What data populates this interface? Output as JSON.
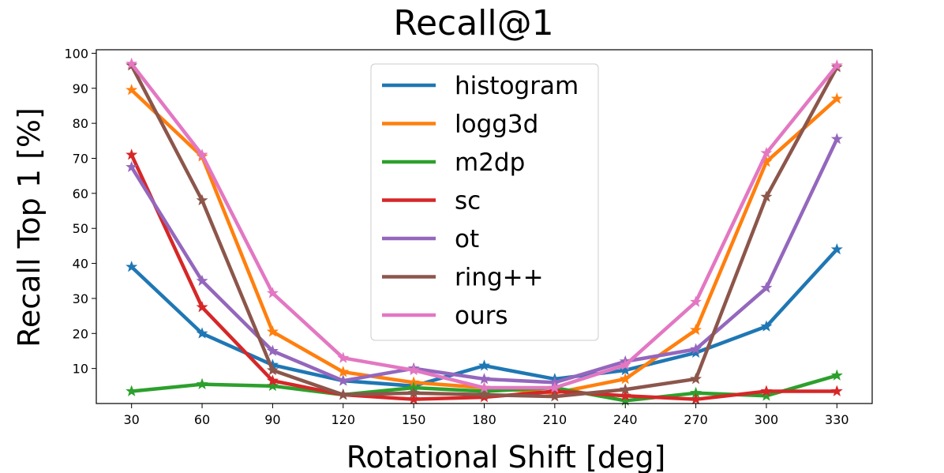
{
  "chart_data": {
    "type": "line",
    "title": "Recall@1",
    "xlabel": "Rotational Shift [deg]",
    "ylabel": "Recall Top 1 [%]",
    "x": [
      30,
      60,
      90,
      120,
      150,
      180,
      210,
      240,
      270,
      300,
      330
    ],
    "x_ticks": [
      "30",
      "60",
      "90",
      "120",
      "150",
      "180",
      "210",
      "240",
      "270",
      "300",
      "330"
    ],
    "y_ticks": [
      "10",
      "20",
      "30",
      "40",
      "50",
      "60",
      "70",
      "80",
      "90",
      "100"
    ],
    "xlim": [
      15,
      345
    ],
    "ylim": [
      0,
      101
    ],
    "grid": false,
    "legend_position": "upper-center",
    "marker": "star",
    "series": [
      {
        "name": "histogram",
        "color": "#1f77b4",
        "values": [
          39,
          20,
          11,
          6.5,
          5,
          10.8,
          7,
          9.5,
          14.5,
          22,
          44
        ]
      },
      {
        "name": "logg3d",
        "color": "#ff7f0e",
        "values": [
          89.5,
          70.5,
          20.5,
          9,
          6,
          4.5,
          3,
          7,
          21,
          69,
          87
        ]
      },
      {
        "name": "m2dp",
        "color": "#2ca02c",
        "values": [
          3.5,
          5.5,
          5,
          2.5,
          4.5,
          3.5,
          4.5,
          0.8,
          3,
          2.2,
          8
        ]
      },
      {
        "name": "sc",
        "color": "#d62728",
        "values": [
          71,
          27.5,
          6.5,
          2.5,
          1.2,
          1.8,
          3.5,
          2.2,
          1.2,
          3.5,
          3.5
        ]
      },
      {
        "name": "ot",
        "color": "#9467bd",
        "values": [
          67.5,
          35,
          15,
          6.5,
          10,
          7,
          6,
          12,
          15.5,
          33,
          75.5
        ]
      },
      {
        "name": "ring++",
        "color": "#8c564b",
        "values": [
          96.5,
          58,
          9.5,
          2.5,
          3,
          2.5,
          2,
          4,
          7,
          59,
          96
        ]
      },
      {
        "name": "ours",
        "color": "#e377c2",
        "values": [
          97,
          71,
          31.5,
          13,
          9.5,
          4.5,
          4.5,
          11,
          29,
          71.5,
          96.5
        ]
      }
    ]
  }
}
